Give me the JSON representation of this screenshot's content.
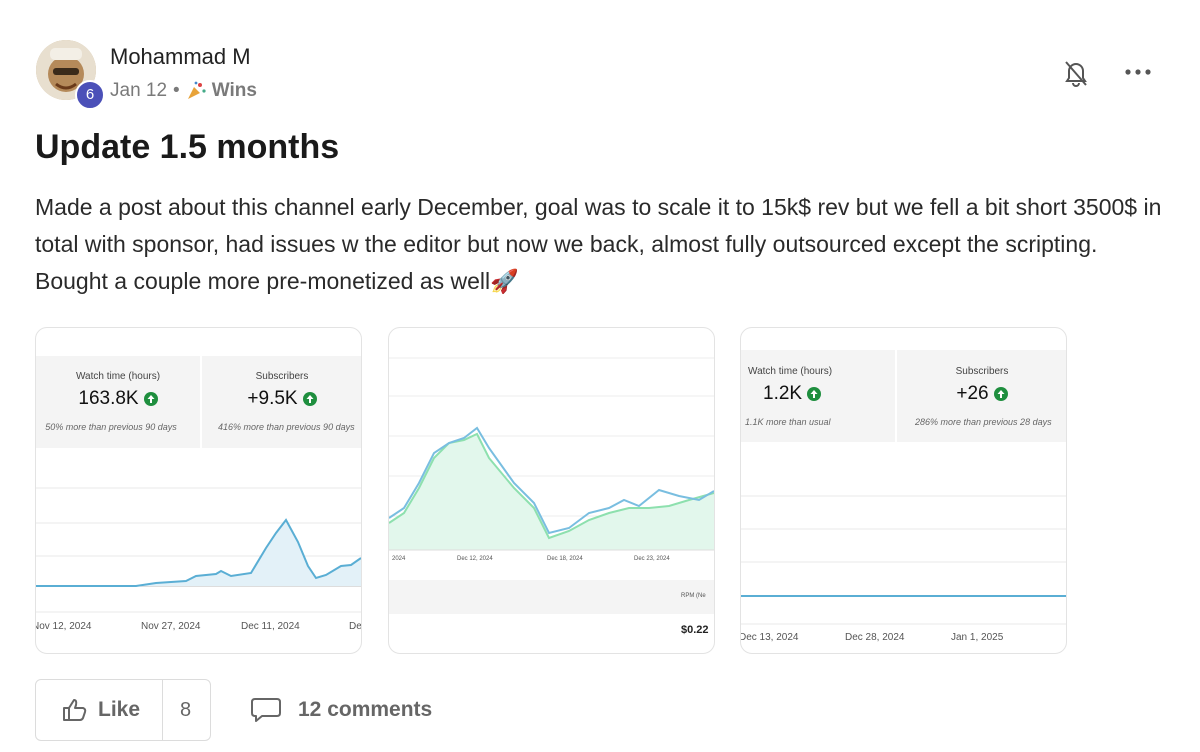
{
  "post": {
    "author": "Mohammad M",
    "level": 6,
    "date": "Jan 12",
    "category": "Wins",
    "title": "Update 1.5 months",
    "body": "Made a post about this channel early December, goal was to scale it to 15k$ rev but we fell a bit short 3500$ in total with sponsor, had issues w the editor but now we back, almost fully outsourced except the scripting. Bought a couple more pre-monetized as well🚀",
    "attachments": [
      {
        "metrics": [
          {
            "label": "Watch time (hours)",
            "value": "163.8K",
            "note": "50% more than previous 90 days"
          },
          {
            "label": "Subscribers",
            "value": "+9.5K",
            "note": "416% more than previous 90 days"
          }
        ],
        "x_labels": [
          "Nov 12, 2024",
          "Nov 27, 2024",
          "Dec 11, 2024",
          "Dec"
        ]
      },
      {
        "x_labels": [
          "2024",
          "Dec 12, 2024",
          "Dec 18, 2024",
          "Dec 23, 2024"
        ],
        "metric_label": "RPM (Ne",
        "metric_value": "$0.22"
      },
      {
        "metrics": [
          {
            "label": "Watch time (hours)",
            "value": "1.2K",
            "note": "1.1K more than usual"
          },
          {
            "label": "Subscribers",
            "value": "+26",
            "note": "286% more than previous 28 days"
          }
        ],
        "x_labels": [
          "Dec 13, 2024",
          "Dec 28, 2024",
          "Jan 1, 2025"
        ]
      }
    ],
    "like_label": "Like",
    "like_count": 8,
    "comments": "12 comments"
  }
}
